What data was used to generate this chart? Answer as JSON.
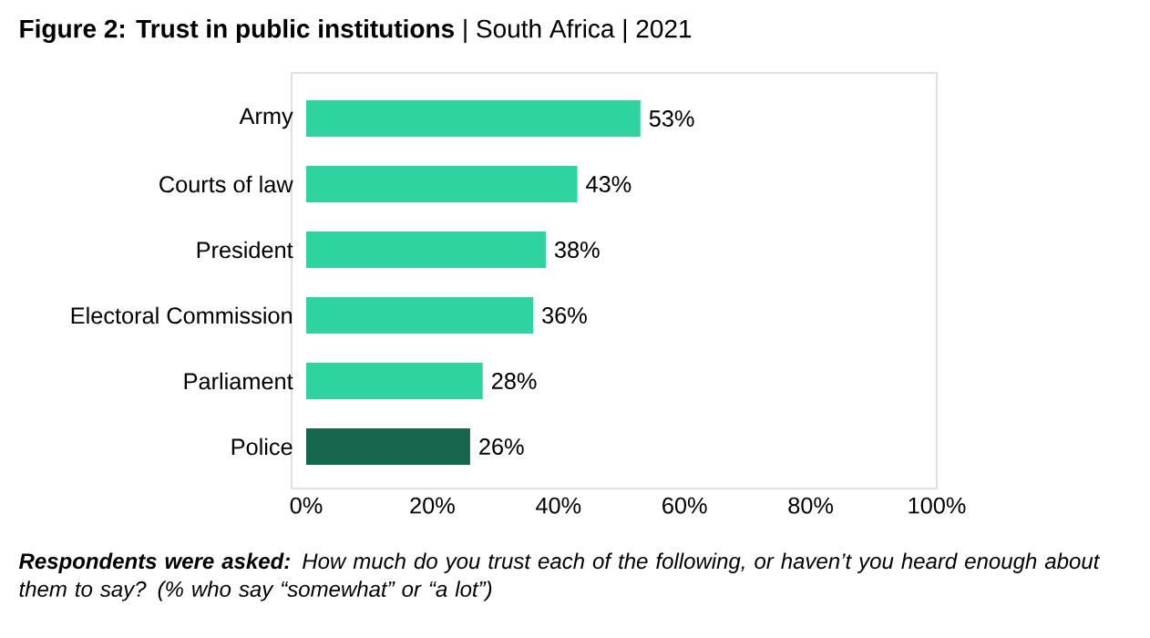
{
  "chart_data": {
    "type": "bar",
    "orientation": "horizontal",
    "title": "**Figure 2: Trust in public institutions** | South Africa | 2021",
    "categories": [
      "Army",
      "Courts of law",
      "President",
      "Electoral Commission",
      "Parliament",
      "Police"
    ],
    "values": [
      53,
      43,
      38,
      36,
      28,
      26
    ],
    "colors": [
      "#2dd4a0",
      "#2dd4a0",
      "#2dd4a0",
      "#2dd4a0",
      "#2dd4a0",
      "#16664d"
    ],
    "value_labels": [
      "53%",
      "43%",
      "38%",
      "36%",
      "28%",
      "26%"
    ],
    "xlim": [
      0,
      100
    ],
    "xticks": [
      {
        "value": 0,
        "label": "0%"
      },
      {
        "value": 20,
        "label": "20%"
      },
      {
        "value": 40,
        "label": "40%"
      },
      {
        "value": 60,
        "label": "60%"
      },
      {
        "value": 80,
        "label": "80%"
      },
      {
        "value": 100,
        "label": "100%"
      }
    ],
    "annotations": [
      "**Respondents were asked:** How much do you trust each of the following, or haven’t you heard enough about them to say? (% who say “somewhat” or “a lot”)"
    ]
  }
}
